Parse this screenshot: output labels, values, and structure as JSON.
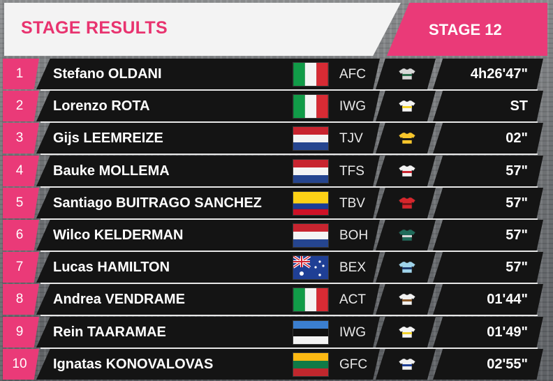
{
  "header": {
    "title": "STAGE RESULTS",
    "stage": "STAGE 12"
  },
  "colors": {
    "accent_pink": "#ea3a78",
    "bar_dark": "#141414"
  },
  "rows": [
    {
      "rank": "1",
      "name": "Stefano OLDANI",
      "flag": "italy",
      "team": "AFC",
      "jersey": "alpecin-jersey-icon",
      "time": "4h26'47\""
    },
    {
      "rank": "2",
      "name": "Lorenzo ROTA",
      "flag": "italy",
      "team": "IWG",
      "jersey": "intermarche-jersey-icon",
      "time": "ST"
    },
    {
      "rank": "3",
      "name": "Gijs LEEMREIZE",
      "flag": "netherlands",
      "team": "TJV",
      "jersey": "jumbo-jersey-icon",
      "time": "02\""
    },
    {
      "rank": "4",
      "name": "Bauke MOLLEMA",
      "flag": "netherlands",
      "team": "TFS",
      "jersey": "trek-jersey-icon",
      "time": "57\""
    },
    {
      "rank": "5",
      "name": "Santiago BUITRAGO SANCHEZ",
      "flag": "colombia",
      "team": "TBV",
      "jersey": "bahrain-jersey-icon",
      "time": "57\""
    },
    {
      "rank": "6",
      "name": "Wilco KELDERMAN",
      "flag": "netherlands",
      "team": "BOH",
      "jersey": "bora-jersey-icon",
      "time": "57\""
    },
    {
      "rank": "7",
      "name": "Lucas HAMILTON",
      "flag": "australia",
      "team": "BEX",
      "jersey": "bikeexchange-jersey-icon",
      "time": "57\""
    },
    {
      "rank": "8",
      "name": "Andrea VENDRAME",
      "flag": "italy",
      "team": "ACT",
      "jersey": "ag2r-jersey-icon",
      "time": "01'44\""
    },
    {
      "rank": "9",
      "name": "Rein TAARAMAE",
      "flag": "estonia",
      "team": "IWG",
      "jersey": "intermarche-jersey-icon",
      "time": "01'49\""
    },
    {
      "rank": "10",
      "name": "Ignatas KONOVALOVAS",
      "flag": "lithuania",
      "team": "GFC",
      "jersey": "groupama-jersey-icon",
      "time": "02'55\""
    }
  ]
}
